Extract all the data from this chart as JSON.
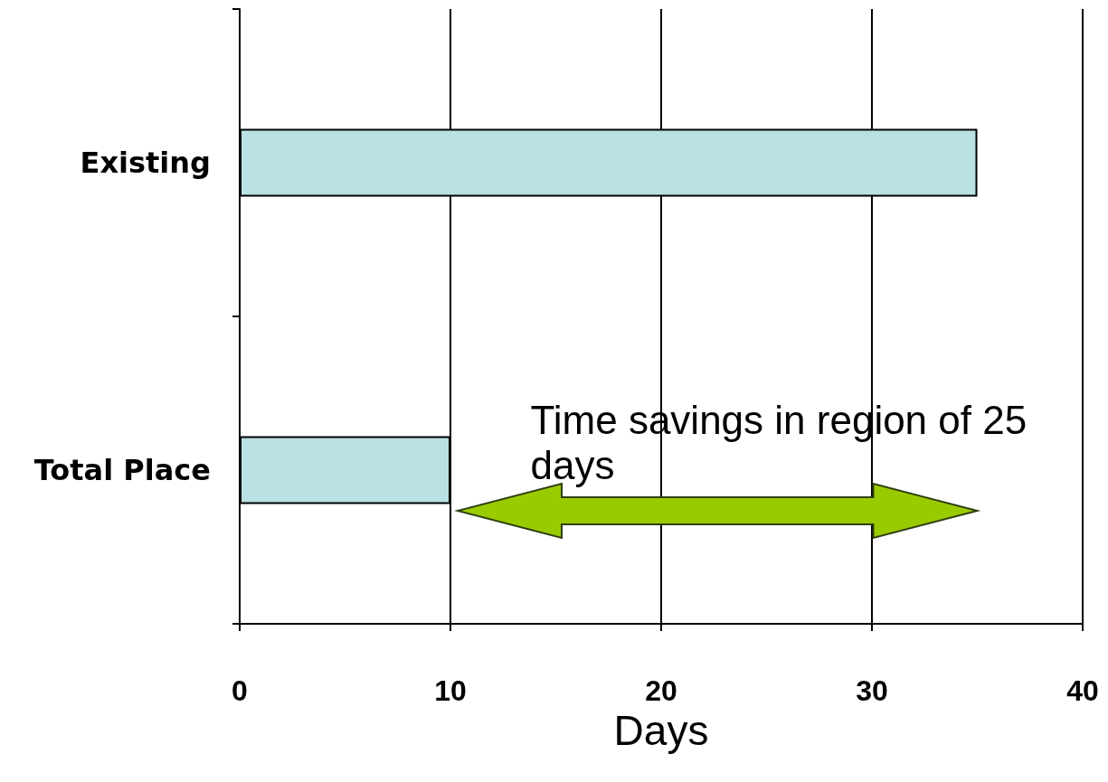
{
  "chart_data": {
    "type": "bar",
    "orientation": "horizontal",
    "categories": [
      "Existing",
      "Total Place"
    ],
    "values": [
      35,
      10
    ],
    "color": "#b9e0e2",
    "xlabel": "Days",
    "xlim": [
      0,
      40
    ],
    "xticks": [
      0,
      10,
      20,
      30,
      40
    ],
    "grid": "x",
    "annotations": [
      "Time savings in region of 25 days"
    ]
  }
}
